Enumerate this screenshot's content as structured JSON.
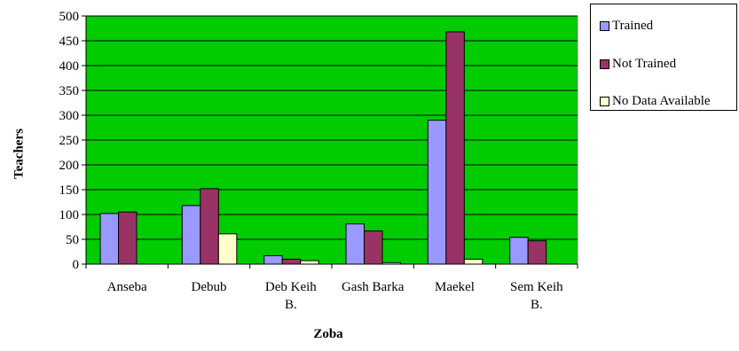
{
  "chart_data": {
    "type": "bar",
    "title": "",
    "xlabel": "Zoba",
    "ylabel": "Teachers",
    "categories": [
      [
        "Anseba"
      ],
      [
        "Debub"
      ],
      [
        "Deb Keih",
        "B."
      ],
      [
        "Gash Barka"
      ],
      [
        "Maekel"
      ],
      [
        "Sem Keih",
        "B."
      ]
    ],
    "series": [
      {
        "name": "Trained",
        "color": "#9999ff",
        "values": [
          102,
          118,
          17,
          81,
          290,
          54
        ]
      },
      {
        "name": "Not Trained",
        "color": "#993366",
        "values": [
          105,
          152,
          10,
          67,
          468,
          47
        ]
      },
      {
        "name": "No Data Available",
        "color": "#ffffcc",
        "values": [
          0,
          61,
          7,
          3,
          10,
          0
        ]
      }
    ],
    "ylim": [
      0,
      500
    ],
    "yticks": [
      0,
      50,
      100,
      150,
      200,
      250,
      300,
      350,
      400,
      450,
      500
    ],
    "plot_background": "#00cc00",
    "grid": true,
    "legend_position": "right"
  }
}
